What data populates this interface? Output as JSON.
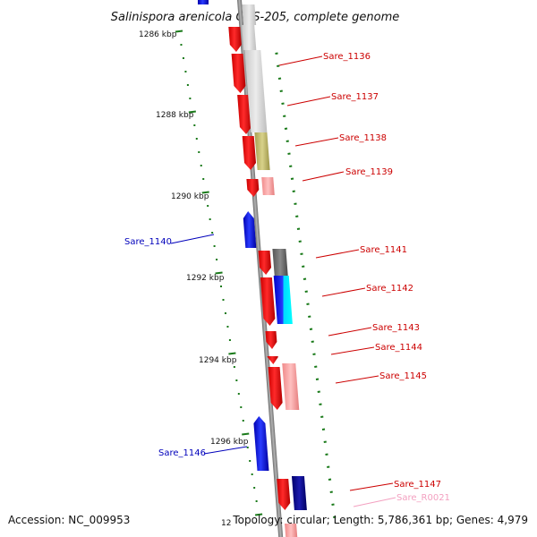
{
  "title": "Salinispora arenicola CNS-205, complete genome",
  "accession": "Accession: NC_009953",
  "topology": "Topology: circular; Length: 5,786,361 bp; Genes: 4,979",
  "colors": {
    "backbone": "#8c8c8c",
    "forward_gene": "#ff0000",
    "reverse_gene": "#0000ff",
    "tick": "#1a7a1a",
    "label_forward": "#cc0000",
    "label_reverse": "#0000bb",
    "label_rna": "#f3a0c0"
  },
  "scale_labels": [
    {
      "text": "1286 kbp"
    },
    {
      "text": "1288 kbp"
    },
    {
      "text": "1290 kbp"
    },
    {
      "text": "1292 kbp"
    },
    {
      "text": "1294 kbp"
    },
    {
      "text": "1296 kbp"
    },
    {
      "text": "12"
    }
  ],
  "gene_labels": [
    {
      "text": "Sare_1136",
      "strand": "forward"
    },
    {
      "text": "Sare_1137",
      "strand": "forward"
    },
    {
      "text": "Sare_1138",
      "strand": "forward"
    },
    {
      "text": "Sare_1139",
      "strand": "forward"
    },
    {
      "text": "Sare_1140",
      "strand": "reverse"
    },
    {
      "text": "Sare_1141",
      "strand": "forward"
    },
    {
      "text": "Sare_1142",
      "strand": "forward"
    },
    {
      "text": "Sare_1143",
      "strand": "forward"
    },
    {
      "text": "Sare_1144",
      "strand": "forward"
    },
    {
      "text": "Sare_1145",
      "strand": "forward"
    },
    {
      "text": "Sare_1146",
      "strand": "reverse"
    },
    {
      "text": "Sare_1147",
      "strand": "forward"
    },
    {
      "text": "Sare_R0021",
      "strand": "rna"
    }
  ]
}
